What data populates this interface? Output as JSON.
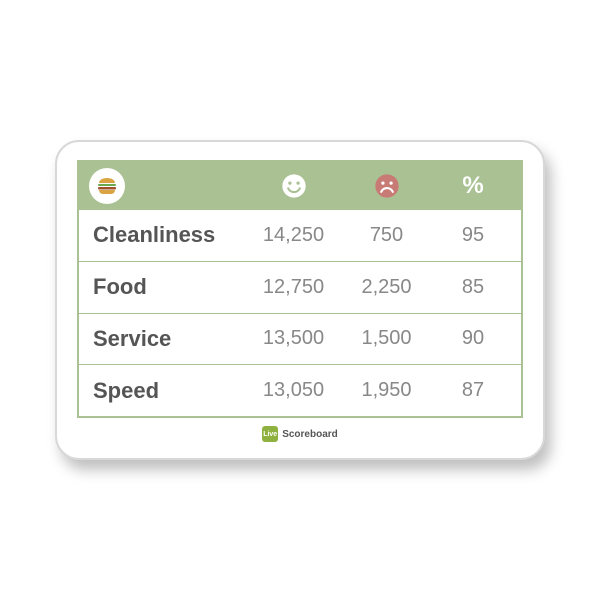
{
  "theme": {
    "header_bg": "#a9c193",
    "happy_icon": "#ffffff",
    "sad_icon": "#c77b74",
    "label_color": "#555555",
    "value_color": "#888888",
    "footer_badge": "#8fb13f"
  },
  "header": {
    "percent_label": "%"
  },
  "table": {
    "rows": [
      {
        "label": "Cleanliness",
        "happy": "14,250",
        "sad": "750",
        "pct": "95"
      },
      {
        "label": "Food",
        "happy": "12,750",
        "sad": "2,250",
        "pct": "85"
      },
      {
        "label": "Service",
        "happy": "13,500",
        "sad": "1,500",
        "pct": "90"
      },
      {
        "label": "Speed",
        "happy": "13,050",
        "sad": "1,950",
        "pct": "87"
      }
    ]
  },
  "footer": {
    "badge_text": "Live",
    "label": "Scoreboard"
  }
}
